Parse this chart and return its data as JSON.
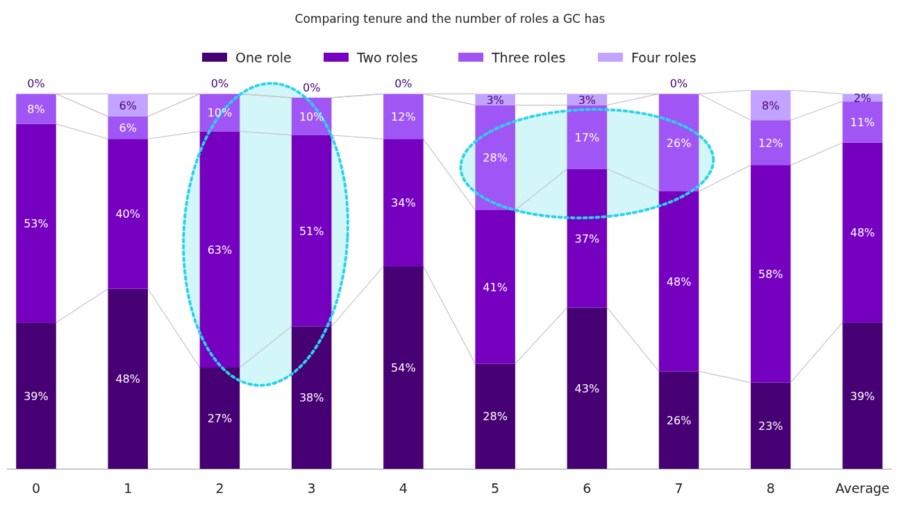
{
  "chart_data": {
    "type": "bar",
    "title": "Comparing tenure and the number of roles a GC has",
    "stacked": true,
    "legend": "top",
    "categories": [
      "0",
      "1",
      "2",
      "3",
      "4",
      "5",
      "6",
      "7",
      "8",
      "Average"
    ],
    "series": [
      {
        "name": "One role",
        "color": "#460073",
        "values": [
          39,
          48,
          27,
          38,
          54,
          28,
          43,
          26,
          23,
          39
        ],
        "value_labels": [
          "39%",
          "48%",
          "27%",
          "38%",
          "54%",
          "28%",
          "43%",
          "26%",
          "23%",
          "39%"
        ]
      },
      {
        "name": "Two roles",
        "color": "#7500c0",
        "values": [
          53,
          40,
          63,
          51,
          34,
          41,
          37,
          48,
          58,
          48
        ],
        "value_labels": [
          "53%",
          "40%",
          "63%",
          "51%",
          "34%",
          "41%",
          "37%",
          "48%",
          "58%",
          "48%"
        ]
      },
      {
        "name": "Three roles",
        "color": "#a055f5",
        "values": [
          8,
          6,
          10,
          10,
          12,
          28,
          17,
          26,
          12,
          11
        ],
        "value_labels": [
          "8%",
          "6%",
          "10%",
          "10%",
          "12%",
          "28%",
          "17%",
          "26%",
          "12%",
          "11%"
        ]
      },
      {
        "name": "Four roles",
        "color": "#c2a3ff",
        "values": [
          0,
          6,
          0,
          0,
          0,
          3,
          3,
          0,
          8,
          2
        ],
        "value_labels": [
          "0%",
          "6%",
          "0%",
          "0%",
          "0%",
          "3%",
          "3%",
          "0%",
          "8%",
          "2%"
        ]
      }
    ]
  }
}
